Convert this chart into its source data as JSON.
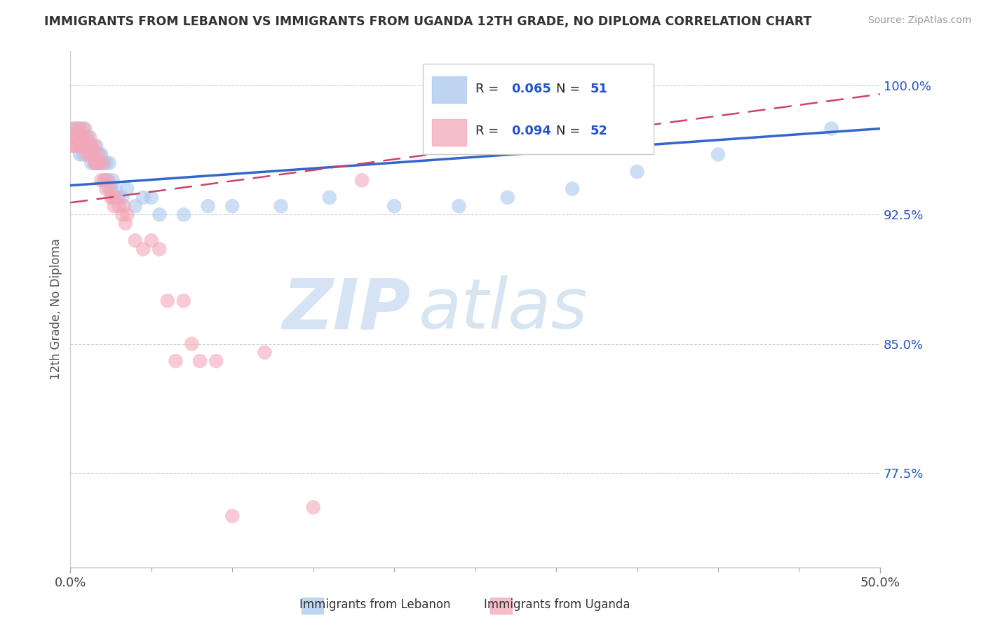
{
  "title": "IMMIGRANTS FROM LEBANON VS IMMIGRANTS FROM UGANDA 12TH GRADE, NO DIPLOMA CORRELATION CHART",
  "source": "Source: ZipAtlas.com",
  "ylabel": "12th Grade, No Diploma",
  "xlim": [
    0.0,
    0.5
  ],
  "ylim": [
    0.72,
    1.02
  ],
  "xtick_labels": [
    "0.0%",
    "50.0%"
  ],
  "ytick_labels": [
    "77.5%",
    "85.0%",
    "92.5%",
    "100.0%"
  ],
  "ytick_values": [
    0.775,
    0.85,
    0.925,
    1.0
  ],
  "r_lebanon": 0.065,
  "n_lebanon": 51,
  "r_uganda": 0.094,
  "n_uganda": 52,
  "color_lebanon": "#aac9ee",
  "color_uganda": "#f4a7b9",
  "color_line_lebanon": "#3366cc",
  "color_line_uganda": "#cc4466",
  "watermark_zip": "ZIP",
  "watermark_atlas": "atlas",
  "lebanon_x": [
    0.001,
    0.002,
    0.003,
    0.004,
    0.005,
    0.006,
    0.006,
    0.007,
    0.008,
    0.008,
    0.009,
    0.01,
    0.011,
    0.011,
    0.012,
    0.013,
    0.013,
    0.014,
    0.015,
    0.016,
    0.017,
    0.018,
    0.018,
    0.019,
    0.02,
    0.021,
    0.022,
    0.023,
    0.024,
    0.025,
    0.026,
    0.028,
    0.03,
    0.032,
    0.035,
    0.04,
    0.045,
    0.05,
    0.055,
    0.07,
    0.085,
    0.1,
    0.13,
    0.16,
    0.2,
    0.24,
    0.27,
    0.31,
    0.35,
    0.4,
    0.47
  ],
  "lebanon_y": [
    0.975,
    0.97,
    0.965,
    0.975,
    0.97,
    0.975,
    0.96,
    0.965,
    0.975,
    0.96,
    0.965,
    0.97,
    0.965,
    0.97,
    0.965,
    0.96,
    0.955,
    0.96,
    0.955,
    0.965,
    0.955,
    0.96,
    0.955,
    0.96,
    0.955,
    0.945,
    0.955,
    0.945,
    0.955,
    0.94,
    0.945,
    0.94,
    0.935,
    0.935,
    0.94,
    0.93,
    0.935,
    0.935,
    0.925,
    0.925,
    0.93,
    0.93,
    0.93,
    0.935,
    0.93,
    0.93,
    0.935,
    0.94,
    0.95,
    0.96,
    0.975
  ],
  "uganda_x": [
    0.001,
    0.002,
    0.003,
    0.003,
    0.004,
    0.005,
    0.005,
    0.006,
    0.007,
    0.008,
    0.008,
    0.009,
    0.01,
    0.011,
    0.012,
    0.012,
    0.013,
    0.014,
    0.015,
    0.015,
    0.016,
    0.017,
    0.018,
    0.019,
    0.02,
    0.021,
    0.022,
    0.023,
    0.024,
    0.025,
    0.026,
    0.027,
    0.028,
    0.03,
    0.032,
    0.033,
    0.034,
    0.035,
    0.04,
    0.045,
    0.05,
    0.055,
    0.06,
    0.065,
    0.07,
    0.075,
    0.08,
    0.09,
    0.1,
    0.12,
    0.15,
    0.18
  ],
  "uganda_y": [
    0.965,
    0.97,
    0.975,
    0.965,
    0.97,
    0.965,
    0.975,
    0.965,
    0.97,
    0.965,
    0.97,
    0.975,
    0.96,
    0.965,
    0.96,
    0.97,
    0.965,
    0.96,
    0.955,
    0.965,
    0.955,
    0.96,
    0.955,
    0.945,
    0.955,
    0.945,
    0.94,
    0.945,
    0.94,
    0.935,
    0.935,
    0.93,
    0.935,
    0.93,
    0.925,
    0.93,
    0.92,
    0.925,
    0.91,
    0.905,
    0.91,
    0.905,
    0.875,
    0.84,
    0.875,
    0.85,
    0.84,
    0.84,
    0.75,
    0.845,
    0.755,
    0.945
  ],
  "leb_line_x": [
    0.0,
    0.5
  ],
  "leb_line_y": [
    0.942,
    0.975
  ],
  "uga_line_x": [
    0.0,
    0.5
  ],
  "uga_line_y": [
    0.932,
    0.995
  ]
}
